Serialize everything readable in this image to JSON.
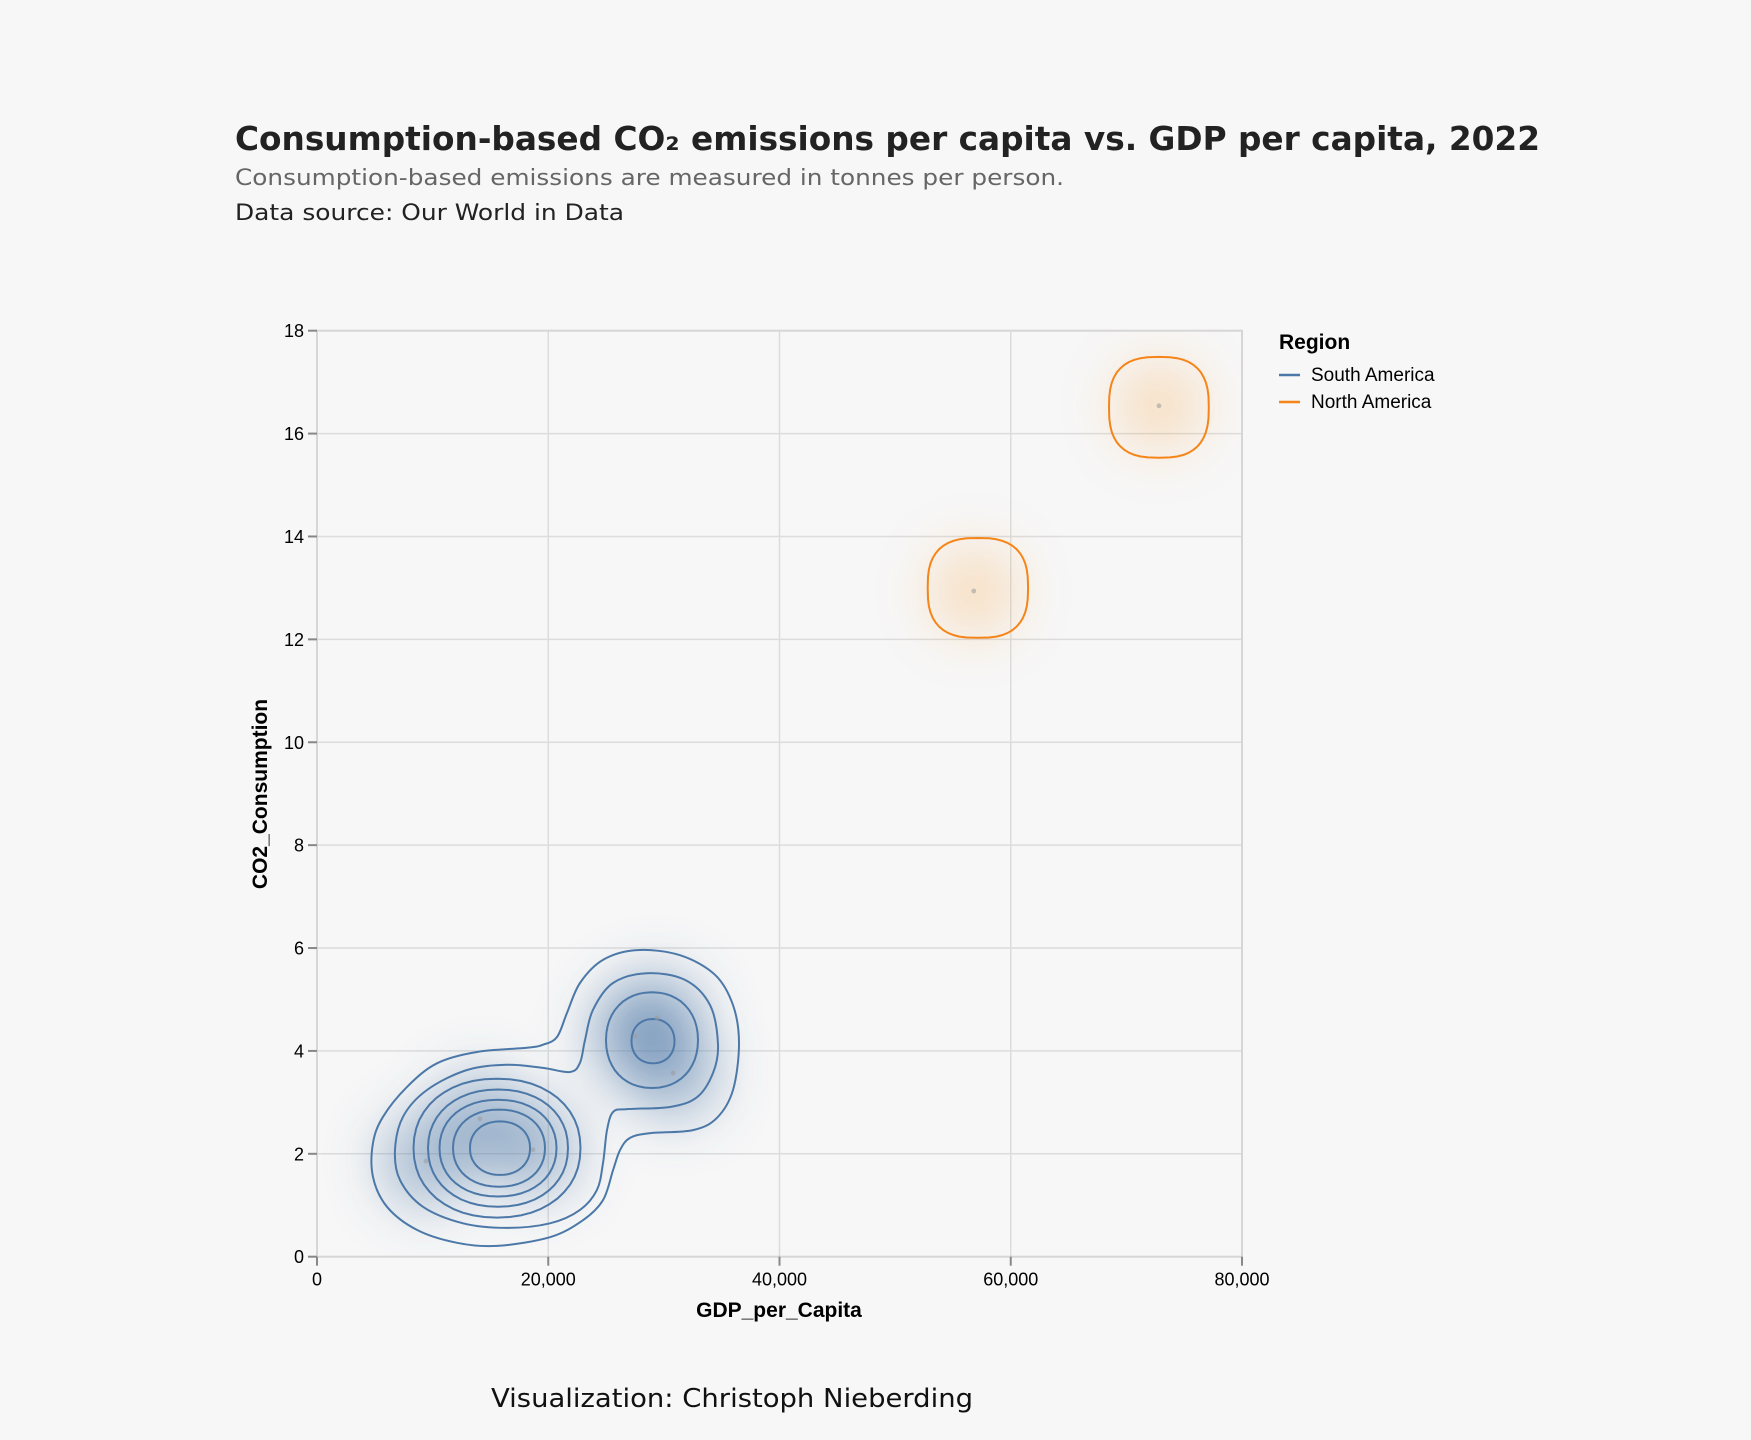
{
  "header": {
    "title": "Consumption-based CO₂ emissions per capita vs. GDP per capita, 2022",
    "subtitle": "Consumption-based emissions are measured in tonnes per person.",
    "source": "Data source: Our World in Data"
  },
  "footer": {
    "credit": "Visualization: Christoph Nieberding"
  },
  "chart_data": {
    "type": "scatter",
    "subtype": "2d-density-contour",
    "title": "Consumption-based CO₂ emissions per capita vs. GDP per capita, 2022",
    "subtitle": "Consumption-based emissions are measured in tonnes per person.",
    "xlabel": "GDP_per_Capita",
    "ylabel": "CO2_Consumption",
    "xlim": [
      0,
      80000
    ],
    "ylim": [
      0,
      18
    ],
    "grid": true,
    "x_ticks": [
      0,
      20000,
      40000,
      60000,
      80000
    ],
    "x_tick_labels": [
      "0",
      "20,000",
      "40,000",
      "60,000",
      "80,000"
    ],
    "y_ticks": [
      0,
      2,
      4,
      6,
      8,
      10,
      12,
      14,
      16,
      18
    ],
    "y_tick_labels": [
      "0",
      "2",
      "4",
      "6",
      "8",
      "10",
      "12",
      "14",
      "16",
      "18"
    ],
    "legend": {
      "title": "Region",
      "placement": "right",
      "entries": [
        {
          "label": "South America",
          "color": "#4c78a8"
        },
        {
          "label": "North America",
          "color": "#f58518"
        }
      ]
    },
    "series": [
      {
        "name": "South America",
        "color": "#4c78a8",
        "points": [
          {
            "x": 9430,
            "y": 1.86
          },
          {
            "x": 14100,
            "y": 2.68
          },
          {
            "x": 18680,
            "y": 2.08
          },
          {
            "x": 27500,
            "y": 4.29
          },
          {
            "x": 29400,
            "y": 4.64
          },
          {
            "x": 30790,
            "y": 3.57
          }
        ],
        "contours": [
          {
            "level": 1,
            "shape": "path",
            "vertices": [
              [
                27675,
                5.96
              ],
              [
                31395,
                5.86
              ],
              [
                34422,
                5.48
              ],
              [
                35979,
                4.89
              ],
              [
                36497,
                4.15
              ],
              [
                35979,
                3.24
              ],
              [
                34595,
                2.7
              ],
              [
                32519,
                2.46
              ],
              [
                28800,
                2.4
              ],
              [
                27070,
                2.31
              ],
              [
                26205,
                2.07
              ],
              [
                25600,
                1.68
              ],
              [
                24735,
                1.1
              ],
              [
                23005,
                0.71
              ],
              [
                20151,
                0.38
              ],
              [
                15568,
                0.21
              ],
              [
                12108,
                0.27
              ],
              [
                8649,
                0.52
              ],
              [
                6054,
                0.97
              ],
              [
                4843,
                1.55
              ],
              [
                4843,
                2.21
              ],
              [
                5708,
                2.72
              ],
              [
                7784,
                3.3
              ],
              [
                10378,
                3.76
              ],
              [
                13838,
                3.98
              ],
              [
                18162,
                4.06
              ],
              [
                19546,
                4.12
              ],
              [
                20757,
                4.27
              ],
              [
                21622,
                4.74
              ],
              [
                22746,
                5.32
              ],
              [
                24735,
                5.77
              ]
            ]
          },
          {
            "level": 2,
            "shape": "path",
            "vertices": [
              [
                28541,
                5.51
              ],
              [
                31827,
                5.38
              ],
              [
                33989,
                4.89
              ],
              [
                34681,
                4.12
              ],
              [
                34249,
                3.57
              ],
              [
                32865,
                3.1
              ],
              [
                30530,
                2.91
              ],
              [
                26811,
                2.87
              ],
              [
                25600,
                2.81
              ],
              [
                25081,
                2.46
              ],
              [
                24735,
                1.82
              ],
              [
                24216,
                1.3
              ],
              [
                22746,
                0.91
              ],
              [
                20151,
                0.65
              ],
              [
                16432,
                0.56
              ],
              [
                12627,
                0.65
              ],
              [
                9168,
                0.97
              ],
              [
                7178,
                1.49
              ],
              [
                6746,
                2.07
              ],
              [
                7438,
                2.72
              ],
              [
                9513,
                3.24
              ],
              [
                12973,
                3.63
              ],
              [
                16432,
                3.73
              ],
              [
                19546,
                3.67
              ],
              [
                21881,
                3.59
              ],
              [
                22746,
                3.77
              ],
              [
                23178,
                4.21
              ],
              [
                23870,
                4.8
              ],
              [
                25600,
                5.32
              ]
            ]
          },
          {
            "level": 3,
            "shape": "ring",
            "cx": 15568,
            "cy": 2.11,
            "rx": 7222,
            "ry": 1.35
          },
          {
            "level": 4,
            "shape": "ring",
            "cx": 15654,
            "cy": 2.11,
            "rx": 6054,
            "ry": 1.14
          },
          {
            "level": 5,
            "shape": "ring",
            "cx": 15654,
            "cy": 2.11,
            "rx": 5059,
            "ry": 0.94
          },
          {
            "level": 6,
            "shape": "ring",
            "cx": 15741,
            "cy": 2.11,
            "rx": 3978,
            "ry": 0.75
          },
          {
            "level": 7,
            "shape": "ring",
            "cx": 15827,
            "cy": 2.11,
            "rx": 2595,
            "ry": 0.52
          },
          {
            "level": 3,
            "shape": "ring",
            "cx": 28973,
            "cy": 4.21,
            "rx": 3978,
            "ry": 0.93
          },
          {
            "level": 4,
            "shape": "ring",
            "cx": 29059,
            "cy": 4.19,
            "rx": 1859,
            "ry": 0.43
          }
        ]
      },
      {
        "name": "North America",
        "color": "#f58518",
        "points": [
          {
            "x": 56800,
            "y": 12.94
          },
          {
            "x": 72820,
            "y": 16.54
          }
        ],
        "contours": [
          {
            "level": 1,
            "shape": "ring",
            "cx": 57156,
            "cy": 13.0,
            "rx": 4341,
            "ry": 0.97
          },
          {
            "level": 1,
            "shape": "ring",
            "cx": 72812,
            "cy": 16.51,
            "rx": 4316,
            "ry": 0.98
          }
        ]
      }
    ]
  }
}
